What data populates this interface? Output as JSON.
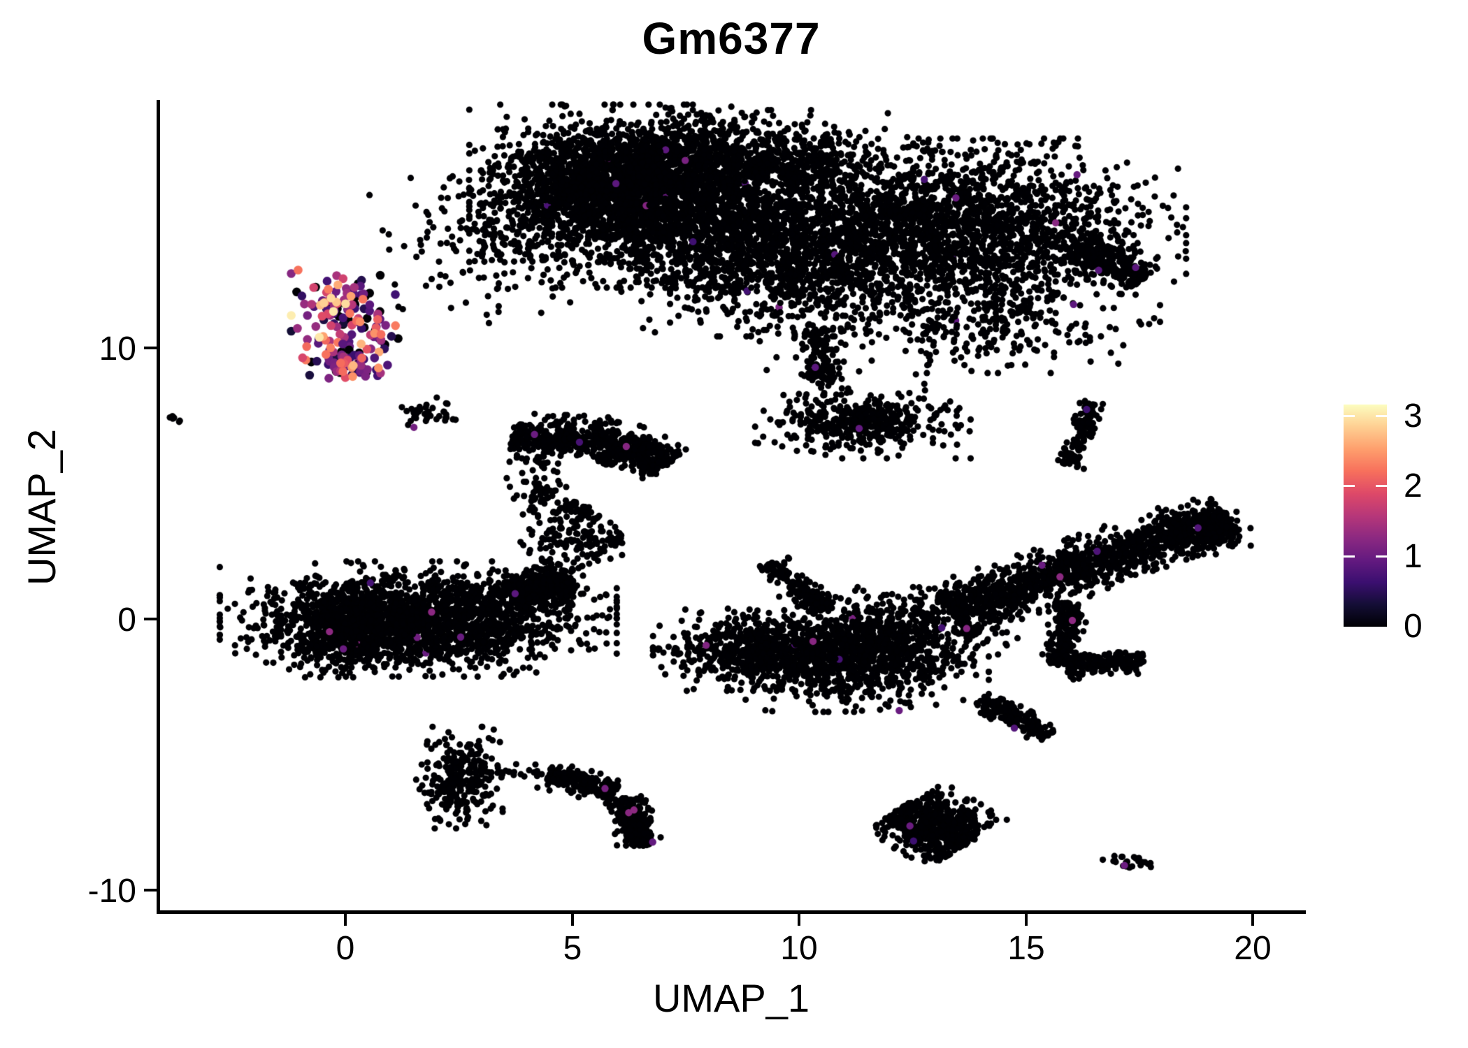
{
  "chart_data": {
    "type": "scatter",
    "title": "Gm6377",
    "xlabel": "UMAP_1",
    "ylabel": "UMAP_2",
    "xlim": [
      -4.2,
      21.1
    ],
    "ylim": [
      -10.8,
      19.1
    ],
    "grid": false,
    "x_ticks": [
      {
        "value": 0,
        "label": "0"
      },
      {
        "value": 5,
        "label": "5"
      },
      {
        "value": 10,
        "label": "10"
      },
      {
        "value": 15,
        "label": "15"
      },
      {
        "value": 20,
        "label": "20"
      }
    ],
    "y_ticks": [
      {
        "value": 10,
        "label": "10"
      },
      {
        "value": 0,
        "label": "0"
      },
      {
        "value": -10,
        "label": "-10"
      }
    ],
    "colorbar": {
      "position": "right",
      "min": 0,
      "max": 3.17,
      "tick_values": [
        3,
        2,
        1,
        0
      ],
      "labels": [
        "3",
        "2",
        "1",
        "0"
      ],
      "colormap": "magma",
      "stops": [
        [
          0.0,
          "#000004"
        ],
        [
          0.1,
          "#140e36"
        ],
        [
          0.2,
          "#3b0f70"
        ],
        [
          0.3,
          "#641a80"
        ],
        [
          0.4,
          "#8c2981"
        ],
        [
          0.5,
          "#b73779"
        ],
        [
          0.6,
          "#de4968"
        ],
        [
          0.7,
          "#f7705c"
        ],
        [
          0.8,
          "#fe9f6d"
        ],
        [
          0.9,
          "#fecf92"
        ],
        [
          1.0,
          "#fcfdbf"
        ]
      ]
    },
    "zero_expression_color": "#000004",
    "clusters": [
      {
        "name": "brain-main-dense",
        "shape": "gauss",
        "cx": 6.6,
        "cy": 15.6,
        "sx": 1.55,
        "sy": 1.35,
        "n": 2400,
        "expression": "zero",
        "accents": 6
      },
      {
        "name": "brain-top-crest",
        "shape": "gauss",
        "cx": 8.6,
        "cy": 16.9,
        "sx": 1.7,
        "sy": 0.75,
        "n": 800,
        "expression": "zero",
        "accents": 2
      },
      {
        "name": "brain-topleft-bump",
        "shape": "gauss",
        "cx": 5.4,
        "cy": 16.3,
        "sx": 0.95,
        "sy": 0.9,
        "n": 500,
        "expression": "zero",
        "accents": 1
      },
      {
        "name": "brain-mid-lower",
        "shape": "gauss",
        "cx": 9.3,
        "cy": 13.8,
        "sx": 1.45,
        "sy": 1.35,
        "n": 1200,
        "expression": "zero",
        "accents": 3
      },
      {
        "name": "brain-left-sparse",
        "shape": "gauss",
        "cx": 3.4,
        "cy": 14.1,
        "sx": 1.15,
        "sy": 1.35,
        "n": 220,
        "expression": "zero",
        "accents": 0
      },
      {
        "name": "brain-bridge-sparse",
        "shape": "gauss",
        "cx": 11.4,
        "cy": 13.4,
        "sx": 1.7,
        "sy": 1.75,
        "n": 800,
        "expression": "zero",
        "accents": 3
      },
      {
        "name": "brain-right-lobe",
        "shape": "gauss",
        "cx": 13.9,
        "cy": 14.6,
        "sx": 1.85,
        "sy": 1.25,
        "n": 1500,
        "expression": "zero",
        "accents": 4
      },
      {
        "name": "brain-right-nose",
        "shape": "band",
        "x1": 16.1,
        "y1": 13.7,
        "x2": 17.6,
        "y2": 12.55,
        "w": 0.3,
        "n": 260,
        "expression": "zero",
        "accents": 2
      },
      {
        "name": "brain-lower-sparse",
        "shape": "gauss",
        "cx": 14.2,
        "cy": 11.2,
        "sx": 1.5,
        "sy": 0.85,
        "n": 300,
        "expression": "zero",
        "accents": 1
      },
      {
        "name": "brain-neck",
        "shape": "band",
        "x1": 10.35,
        "y1": 10.7,
        "x2": 10.6,
        "y2": 8.7,
        "w": 0.2,
        "n": 130,
        "expression": "zero",
        "accents": 1
      },
      {
        "name": "brain-bottom-tail",
        "shape": "gauss",
        "cx": 11.4,
        "cy": 7.3,
        "sx": 0.95,
        "sy": 0.55,
        "n": 430,
        "expression": "zero",
        "accents": 1
      },
      {
        "name": "left-speck",
        "shape": "band",
        "x1": -3.85,
        "y1": 7.5,
        "x2": -3.6,
        "y2": 7.3,
        "w": 0.07,
        "n": 7,
        "expression": "zero",
        "accents": 0
      },
      {
        "name": "small-trail-blob",
        "shape": "gauss",
        "cx": 1.68,
        "cy": 7.62,
        "sx": 0.26,
        "sy": 0.22,
        "n": 30,
        "expression": "zero",
        "accents": 1
      },
      {
        "name": "small-trail-tail",
        "shape": "band",
        "x1": 2.0,
        "y1": 7.5,
        "x2": 2.45,
        "y2": 7.28,
        "w": 0.08,
        "n": 8,
        "expression": "zero",
        "accents": 0
      },
      {
        "name": "crescent-band-left",
        "shape": "band",
        "x1": 3.65,
        "y1": 6.7,
        "x2": 6.0,
        "y2": 6.55,
        "w": 0.36,
        "n": 380,
        "expression": "zero",
        "accents": 2
      },
      {
        "name": "crescent-band-right",
        "shape": "band",
        "x1": 6.0,
        "y1": 6.5,
        "x2": 7.1,
        "y2": 5.68,
        "w": 0.32,
        "n": 270,
        "expression": "zero",
        "accents": 1
      },
      {
        "name": "crescent-clump1",
        "shape": "gauss",
        "cx": 4.25,
        "cy": 4.6,
        "sx": 0.28,
        "sy": 0.55,
        "n": 70,
        "expression": "zero",
        "accents": 0
      },
      {
        "name": "crescent-chain",
        "shape": "band",
        "x1": 4.85,
        "y1": 4.25,
        "x2": 5.55,
        "y2": 3.6,
        "w": 0.2,
        "n": 55,
        "expression": "zero",
        "accents": 0
      },
      {
        "name": "crescent-clump2",
        "shape": "gauss",
        "cx": 5.1,
        "cy": 2.95,
        "sx": 0.5,
        "sy": 0.35,
        "n": 95,
        "expression": "zero",
        "accents": 0
      },
      {
        "name": "crescent-dots-right",
        "shape": "band",
        "x1": 5.8,
        "y1": 2.95,
        "x2": 6.15,
        "y2": 2.9,
        "w": 0.12,
        "n": 12,
        "expression": "zero",
        "accents": 0
      },
      {
        "name": "crescent-dots-down",
        "shape": "band",
        "x1": 4.35,
        "y1": 2.3,
        "x2": 4.55,
        "y2": 1.55,
        "w": 0.12,
        "n": 18,
        "expression": "zero",
        "accents": 0
      },
      {
        "name": "blob-left-main",
        "shape": "gauss",
        "cx": 1.6,
        "cy": 0.0,
        "sx": 1.75,
        "sy": 0.85,
        "n": 1900,
        "expression": "zero",
        "accents": 6
      },
      {
        "name": "blob-left-west",
        "shape": "gauss",
        "cx": 0.2,
        "cy": -0.4,
        "sx": 0.65,
        "sy": 0.7,
        "n": 450,
        "expression": "zero",
        "accents": 2
      },
      {
        "name": "blob-left-taper",
        "shape": "band",
        "x1": 3.6,
        "y1": 0.8,
        "x2": 5.0,
        "y2": 1.45,
        "w": 0.3,
        "n": 380,
        "expression": "zero",
        "accents": 1
      },
      {
        "name": "blob-connector-dots",
        "shape": "band",
        "x1": 5.0,
        "y1": 1.7,
        "x2": 5.5,
        "y2": 2.6,
        "w": 0.22,
        "n": 16,
        "expression": "zero",
        "accents": 0
      },
      {
        "name": "wing-arm",
        "shape": "band",
        "x1": 9.35,
        "y1": 2.1,
        "x2": 10.6,
        "y2": 0.3,
        "w": 0.17,
        "n": 150,
        "expression": "zero",
        "accents": 0
      },
      {
        "name": "wing-left-lobe",
        "shape": "gauss",
        "cx": 9.15,
        "cy": -1.15,
        "sx": 0.95,
        "sy": 0.6,
        "n": 620,
        "expression": "zero",
        "accents": 2
      },
      {
        "name": "wing-center",
        "shape": "gauss",
        "cx": 11.3,
        "cy": -1.3,
        "sx": 1.15,
        "sy": 0.85,
        "n": 1000,
        "expression": "zero",
        "accents": 4
      },
      {
        "name": "wing-bridge-sparse",
        "shape": "gauss",
        "cx": 12.9,
        "cy": -0.1,
        "sx": 1.0,
        "sy": 0.65,
        "n": 260,
        "expression": "zero",
        "accents": 1
      },
      {
        "name": "wing-right-band",
        "shape": "band",
        "x1": 13.3,
        "y1": 0.3,
        "x2": 19.45,
        "y2": 3.75,
        "w": 0.42,
        "n": 1300,
        "expression": "zero",
        "accents": 4
      },
      {
        "name": "wing-tip",
        "shape": "gauss",
        "cx": 19.0,
        "cy": 3.2,
        "sx": 0.38,
        "sy": 0.35,
        "n": 110,
        "expression": "zero",
        "accents": 1
      },
      {
        "name": "wing-hook-down",
        "shape": "band",
        "x1": 15.95,
        "y1": 0.6,
        "x2": 15.75,
        "y2": -1.7,
        "w": 0.17,
        "n": 200,
        "expression": "zero",
        "accents": 1
      },
      {
        "name": "wing-hook-foot",
        "shape": "band",
        "x1": 15.85,
        "y1": -1.75,
        "x2": 17.6,
        "y2": -1.5,
        "w": 0.2,
        "n": 210,
        "expression": "zero",
        "accents": 0
      },
      {
        "name": "detached-streak",
        "shape": "band",
        "x1": 14.0,
        "y1": -2.95,
        "x2": 15.5,
        "y2": -4.3,
        "w": 0.16,
        "n": 170,
        "expression": "zero",
        "accents": 1
      },
      {
        "name": "right-vertical-streak",
        "shape": "band",
        "x1": 16.5,
        "y1": 8.0,
        "x2": 15.95,
        "y2": 5.6,
        "w": 0.13,
        "n": 130,
        "expression": "zero",
        "accents": 1
      },
      {
        "name": "comma-head",
        "shape": "gauss",
        "cx": 2.55,
        "cy": -5.85,
        "sx": 0.42,
        "sy": 0.75,
        "n": 270,
        "expression": "zero",
        "accents": 0
      },
      {
        "name": "comma-gap-dots",
        "shape": "band",
        "x1": 3.2,
        "y1": -5.65,
        "x2": 4.35,
        "y2": -5.7,
        "w": 0.13,
        "n": 20,
        "expression": "zero",
        "accents": 0
      },
      {
        "name": "comma-arc",
        "shape": "band",
        "x1": 4.4,
        "y1": -5.75,
        "x2": 5.95,
        "y2": -6.35,
        "w": 0.2,
        "n": 200,
        "expression": "zero",
        "accents": 1
      },
      {
        "name": "comma-tail",
        "shape": "band",
        "x1": 6.15,
        "y1": -6.6,
        "x2": 6.5,
        "y2": -8.4,
        "w": 0.2,
        "n": 230,
        "expression": "zero",
        "accents": 3
      },
      {
        "name": "bottomright-blob",
        "shape": "band",
        "x1": 12.3,
        "y1": -6.9,
        "x2": 13.7,
        "y2": -8.3,
        "w": 0.5,
        "n": 560,
        "expression": "zero",
        "accents": 2
      },
      {
        "name": "tiny-speck",
        "shape": "gauss",
        "cx": 17.35,
        "cy": -9.0,
        "sx": 0.3,
        "sy": 0.14,
        "n": 26,
        "expression": "zero",
        "accents": 1
      },
      {
        "name": "tiny-speck-dot",
        "shape": "point",
        "x": 16.95,
        "y": -8.9,
        "value": 0,
        "n": 1
      },
      {
        "name": "expressing-cluster-upper",
        "shape": "gauss",
        "cx": 0.05,
        "cy": 11.1,
        "sx": 0.5,
        "sy": 0.85,
        "n": 150,
        "expression": "mixed",
        "dot_r": 6.3
      },
      {
        "name": "expressing-cluster-lower",
        "shape": "gauss",
        "cx": 0.1,
        "cy": 9.4,
        "sx": 0.42,
        "sy": 0.3,
        "n": 68,
        "expression": "mixed",
        "dot_r": 6.3
      },
      {
        "name": "expressing-outlier-dot",
        "shape": "point",
        "x": 0.78,
        "y": 10.5,
        "value": 2.2,
        "n": 1,
        "dot_r": 6.3
      }
    ]
  }
}
